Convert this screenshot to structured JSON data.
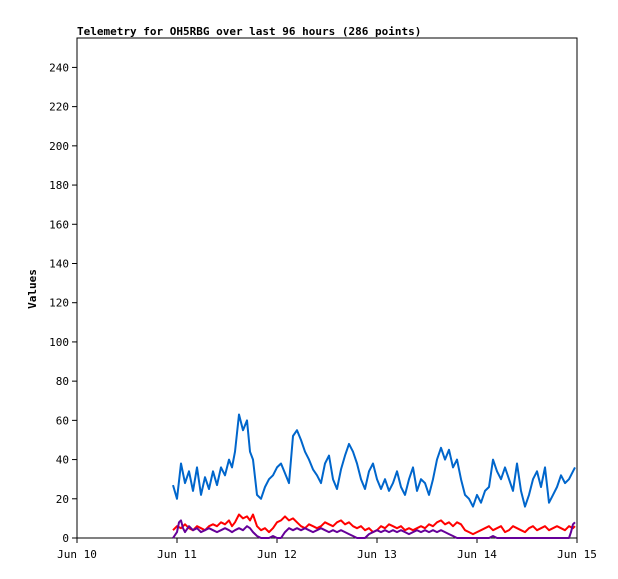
{
  "chart_data": {
    "type": "line",
    "title": "Telemetry for OH5RBG over last 96 hours (286 points)",
    "xlabel": "",
    "ylabel": "Values",
    "xlim": [
      "Jun 10",
      "Jun 15"
    ],
    "ylim": [
      0,
      255
    ],
    "x_ticks": [
      "Jun 10",
      "Jun 11",
      "Jun 12",
      "Jun 13",
      "Jun 14",
      "Jun 15"
    ],
    "y_ticks": [
      0,
      20,
      40,
      60,
      80,
      100,
      120,
      140,
      160,
      180,
      200,
      220,
      240
    ],
    "grid": false,
    "legend": "none",
    "series": [
      {
        "color": "#0066cc",
        "points": [
          [
            10.96,
            27
          ],
          [
            11.0,
            20
          ],
          [
            11.04,
            38
          ],
          [
            11.08,
            28
          ],
          [
            11.12,
            34
          ],
          [
            11.16,
            24
          ],
          [
            11.2,
            36
          ],
          [
            11.24,
            22
          ],
          [
            11.28,
            31
          ],
          [
            11.32,
            25
          ],
          [
            11.36,
            34
          ],
          [
            11.4,
            27
          ],
          [
            11.44,
            36
          ],
          [
            11.48,
            32
          ],
          [
            11.52,
            40
          ],
          [
            11.55,
            36
          ],
          [
            11.58,
            44
          ],
          [
            11.62,
            63
          ],
          [
            11.66,
            55
          ],
          [
            11.7,
            60
          ],
          [
            11.73,
            44
          ],
          [
            11.76,
            40
          ],
          [
            11.8,
            22
          ],
          [
            11.84,
            20
          ],
          [
            11.88,
            26
          ],
          [
            11.92,
            30
          ],
          [
            11.96,
            32
          ],
          [
            12.0,
            36
          ],
          [
            12.04,
            38
          ],
          [
            12.08,
            33
          ],
          [
            12.12,
            28
          ],
          [
            12.16,
            52
          ],
          [
            12.2,
            55
          ],
          [
            12.24,
            50
          ],
          [
            12.28,
            44
          ],
          [
            12.32,
            40
          ],
          [
            12.36,
            35
          ],
          [
            12.4,
            32
          ],
          [
            12.44,
            28
          ],
          [
            12.48,
            38
          ],
          [
            12.52,
            42
          ],
          [
            12.56,
            30
          ],
          [
            12.6,
            25
          ],
          [
            12.64,
            35
          ],
          [
            12.68,
            42
          ],
          [
            12.72,
            48
          ],
          [
            12.76,
            44
          ],
          [
            12.8,
            38
          ],
          [
            12.84,
            30
          ],
          [
            12.88,
            25
          ],
          [
            12.92,
            34
          ],
          [
            12.96,
            38
          ],
          [
            13.0,
            30
          ],
          [
            13.04,
            25
          ],
          [
            13.08,
            30
          ],
          [
            13.12,
            24
          ],
          [
            13.16,
            28
          ],
          [
            13.2,
            34
          ],
          [
            13.24,
            26
          ],
          [
            13.28,
            22
          ],
          [
            13.32,
            30
          ],
          [
            13.36,
            36
          ],
          [
            13.4,
            24
          ],
          [
            13.44,
            30
          ],
          [
            13.48,
            28
          ],
          [
            13.52,
            22
          ],
          [
            13.56,
            30
          ],
          [
            13.6,
            40
          ],
          [
            13.64,
            46
          ],
          [
            13.68,
            40
          ],
          [
            13.72,
            45
          ],
          [
            13.76,
            36
          ],
          [
            13.8,
            40
          ],
          [
            13.84,
            30
          ],
          [
            13.88,
            22
          ],
          [
            13.92,
            20
          ],
          [
            13.96,
            16
          ],
          [
            14.0,
            22
          ],
          [
            14.04,
            18
          ],
          [
            14.08,
            24
          ],
          [
            14.12,
            26
          ],
          [
            14.16,
            40
          ],
          [
            14.2,
            34
          ],
          [
            14.24,
            30
          ],
          [
            14.28,
            36
          ],
          [
            14.32,
            30
          ],
          [
            14.36,
            24
          ],
          [
            14.4,
            38
          ],
          [
            14.44,
            24
          ],
          [
            14.48,
            16
          ],
          [
            14.52,
            22
          ],
          [
            14.56,
            30
          ],
          [
            14.6,
            34
          ],
          [
            14.64,
            26
          ],
          [
            14.68,
            36
          ],
          [
            14.72,
            18
          ],
          [
            14.76,
            22
          ],
          [
            14.8,
            26
          ],
          [
            14.84,
            32
          ],
          [
            14.88,
            28
          ],
          [
            14.92,
            30
          ],
          [
            14.96,
            34
          ],
          [
            14.98,
            36
          ]
        ]
      },
      {
        "color": "#ff0000",
        "points": [
          [
            10.96,
            4
          ],
          [
            11.0,
            6
          ],
          [
            11.04,
            5
          ],
          [
            11.08,
            7
          ],
          [
            11.12,
            5
          ],
          [
            11.16,
            4
          ],
          [
            11.2,
            6
          ],
          [
            11.24,
            5
          ],
          [
            11.28,
            4
          ],
          [
            11.32,
            6
          ],
          [
            11.36,
            7
          ],
          [
            11.4,
            6
          ],
          [
            11.44,
            8
          ],
          [
            11.48,
            7
          ],
          [
            11.52,
            9
          ],
          [
            11.55,
            6
          ],
          [
            11.58,
            8
          ],
          [
            11.62,
            12
          ],
          [
            11.66,
            10
          ],
          [
            11.7,
            11
          ],
          [
            11.73,
            9
          ],
          [
            11.76,
            12
          ],
          [
            11.8,
            6
          ],
          [
            11.84,
            4
          ],
          [
            11.88,
            5
          ],
          [
            11.92,
            3
          ],
          [
            11.96,
            5
          ],
          [
            12.0,
            8
          ],
          [
            12.04,
            9
          ],
          [
            12.08,
            11
          ],
          [
            12.12,
            9
          ],
          [
            12.16,
            10
          ],
          [
            12.2,
            8
          ],
          [
            12.24,
            6
          ],
          [
            12.28,
            5
          ],
          [
            12.32,
            7
          ],
          [
            12.36,
            6
          ],
          [
            12.4,
            5
          ],
          [
            12.44,
            6
          ],
          [
            12.48,
            8
          ],
          [
            12.52,
            7
          ],
          [
            12.56,
            6
          ],
          [
            12.6,
            8
          ],
          [
            12.64,
            9
          ],
          [
            12.68,
            7
          ],
          [
            12.72,
            8
          ],
          [
            12.76,
            6
          ],
          [
            12.8,
            5
          ],
          [
            12.84,
            6
          ],
          [
            12.88,
            4
          ],
          [
            12.92,
            5
          ],
          [
            12.96,
            3
          ],
          [
            13.0,
            4
          ],
          [
            13.04,
            6
          ],
          [
            13.08,
            5
          ],
          [
            13.12,
            7
          ],
          [
            13.16,
            6
          ],
          [
            13.2,
            5
          ],
          [
            13.24,
            6
          ],
          [
            13.28,
            4
          ],
          [
            13.32,
            5
          ],
          [
            13.36,
            4
          ],
          [
            13.4,
            5
          ],
          [
            13.44,
            6
          ],
          [
            13.48,
            5
          ],
          [
            13.52,
            7
          ],
          [
            13.56,
            6
          ],
          [
            13.6,
            8
          ],
          [
            13.64,
            9
          ],
          [
            13.68,
            7
          ],
          [
            13.72,
            8
          ],
          [
            13.76,
            6
          ],
          [
            13.8,
            8
          ],
          [
            13.84,
            7
          ],
          [
            13.88,
            4
          ],
          [
            13.92,
            3
          ],
          [
            13.96,
            2
          ],
          [
            14.0,
            3
          ],
          [
            14.04,
            4
          ],
          [
            14.08,
            5
          ],
          [
            14.12,
            6
          ],
          [
            14.16,
            4
          ],
          [
            14.2,
            5
          ],
          [
            14.24,
            6
          ],
          [
            14.28,
            3
          ],
          [
            14.32,
            4
          ],
          [
            14.36,
            6
          ],
          [
            14.4,
            5
          ],
          [
            14.44,
            4
          ],
          [
            14.48,
            3
          ],
          [
            14.52,
            5
          ],
          [
            14.56,
            6
          ],
          [
            14.6,
            4
          ],
          [
            14.64,
            5
          ],
          [
            14.68,
            6
          ],
          [
            14.72,
            4
          ],
          [
            14.76,
            5
          ],
          [
            14.8,
            6
          ],
          [
            14.84,
            5
          ],
          [
            14.88,
            4
          ],
          [
            14.92,
            6
          ],
          [
            14.96,
            5
          ],
          [
            14.98,
            6
          ]
        ]
      },
      {
        "color": "#660099",
        "points": [
          [
            10.96,
            0
          ],
          [
            11.0,
            3
          ],
          [
            11.02,
            8
          ],
          [
            11.04,
            9
          ],
          [
            11.06,
            5
          ],
          [
            11.08,
            3
          ],
          [
            11.12,
            6
          ],
          [
            11.16,
            4
          ],
          [
            11.2,
            5
          ],
          [
            11.24,
            3
          ],
          [
            11.28,
            4
          ],
          [
            11.32,
            5
          ],
          [
            11.36,
            4
          ],
          [
            11.4,
            3
          ],
          [
            11.44,
            4
          ],
          [
            11.48,
            5
          ],
          [
            11.52,
            4
          ],
          [
            11.55,
            3
          ],
          [
            11.58,
            4
          ],
          [
            11.62,
            5
          ],
          [
            11.66,
            4
          ],
          [
            11.7,
            6
          ],
          [
            11.73,
            5
          ],
          [
            11.76,
            3
          ],
          [
            11.8,
            1
          ],
          [
            11.84,
            0
          ],
          [
            11.88,
            0
          ],
          [
            11.92,
            0
          ],
          [
            11.96,
            1
          ],
          [
            12.0,
            0
          ],
          [
            12.04,
            0
          ],
          [
            12.08,
            3
          ],
          [
            12.12,
            5
          ],
          [
            12.16,
            4
          ],
          [
            12.2,
            5
          ],
          [
            12.24,
            4
          ],
          [
            12.28,
            5
          ],
          [
            12.32,
            4
          ],
          [
            12.36,
            3
          ],
          [
            12.4,
            4
          ],
          [
            12.44,
            5
          ],
          [
            12.48,
            4
          ],
          [
            12.52,
            3
          ],
          [
            12.56,
            4
          ],
          [
            12.6,
            3
          ],
          [
            12.64,
            4
          ],
          [
            12.68,
            3
          ],
          [
            12.72,
            2
          ],
          [
            12.76,
            1
          ],
          [
            12.8,
            0
          ],
          [
            12.84,
            0
          ],
          [
            12.88,
            0
          ],
          [
            12.92,
            2
          ],
          [
            12.96,
            3
          ],
          [
            13.0,
            4
          ],
          [
            13.04,
            3
          ],
          [
            13.08,
            4
          ],
          [
            13.12,
            3
          ],
          [
            13.16,
            4
          ],
          [
            13.2,
            3
          ],
          [
            13.24,
            4
          ],
          [
            13.28,
            3
          ],
          [
            13.32,
            2
          ],
          [
            13.36,
            3
          ],
          [
            13.4,
            4
          ],
          [
            13.44,
            3
          ],
          [
            13.48,
            4
          ],
          [
            13.52,
            3
          ],
          [
            13.56,
            4
          ],
          [
            13.6,
            3
          ],
          [
            13.64,
            4
          ],
          [
            13.68,
            3
          ],
          [
            13.72,
            2
          ],
          [
            13.76,
            1
          ],
          [
            13.8,
            0
          ],
          [
            13.84,
            0
          ],
          [
            13.88,
            0
          ],
          [
            13.92,
            0
          ],
          [
            13.96,
            0
          ],
          [
            14.0,
            0
          ],
          [
            14.04,
            0
          ],
          [
            14.08,
            0
          ],
          [
            14.12,
            0
          ],
          [
            14.16,
            1
          ],
          [
            14.2,
            0
          ],
          [
            14.24,
            0
          ],
          [
            14.28,
            0
          ],
          [
            14.32,
            0
          ],
          [
            14.36,
            0
          ],
          [
            14.4,
            0
          ],
          [
            14.44,
            0
          ],
          [
            14.48,
            0
          ],
          [
            14.52,
            0
          ],
          [
            14.56,
            0
          ],
          [
            14.6,
            0
          ],
          [
            14.64,
            0
          ],
          [
            14.68,
            0
          ],
          [
            14.72,
            0
          ],
          [
            14.76,
            0
          ],
          [
            14.8,
            0
          ],
          [
            14.84,
            0
          ],
          [
            14.88,
            0
          ],
          [
            14.92,
            0
          ],
          [
            14.94,
            3
          ],
          [
            14.96,
            7
          ],
          [
            14.98,
            8
          ]
        ]
      }
    ]
  }
}
